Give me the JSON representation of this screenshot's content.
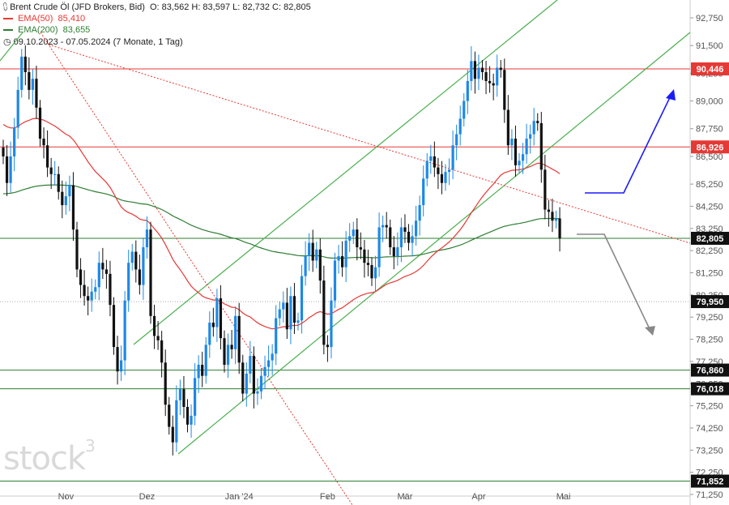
{
  "header": {
    "title": "Brent Crude Öl (JFD Brokers, Bid)",
    "ohlc": "O: 83,562   H: 83,597   L: 82,732   C: 82,805",
    "ema50_label": "EMA(50)",
    "ema50_value": "85,410",
    "ema200_label": "EMA(200)",
    "ema200_value": "83,655",
    "range": "09.10.2023 - 07.05.2024  (7 Monate, 1 Tag)"
  },
  "logo": {
    "text": "stock",
    "sup": "3"
  },
  "colors": {
    "up": "#1e88e5",
    "down": "#111111",
    "ema50": "#e53935",
    "ema200": "#2e7d32",
    "red_line": "#e53935",
    "green_line": "#2e7d32",
    "channel": "#4caf50",
    "arrow_up": "#1a1aff",
    "arrow_down": "#888888"
  },
  "chart_data": {
    "type": "candlestick",
    "ylim": [
      71.25,
      92.75
    ],
    "yticks": [
      "92,750",
      "91,500",
      "90,250",
      "89,000",
      "87,750",
      "86,500",
      "85,250",
      "84,250",
      "83,250",
      "82,250",
      "81,250",
      "80,250",
      "79,250",
      "78,250",
      "77,250",
      "76,250",
      "75,250",
      "74,250",
      "73,250",
      "72,250",
      "71,250"
    ],
    "ytick_values": [
      92.75,
      91.5,
      90.25,
      89.0,
      87.75,
      86.5,
      85.25,
      84.25,
      83.25,
      82.25,
      81.25,
      80.25,
      79.25,
      78.25,
      77.25,
      76.25,
      75.25,
      74.25,
      73.25,
      72.25,
      71.25
    ],
    "xticks": [
      {
        "label": "Nov",
        "index": 17
      },
      {
        "label": "Dez",
        "index": 39
      },
      {
        "label": "Jan '24",
        "index": 64
      },
      {
        "label": "Feb",
        "index": 88
      },
      {
        "label": "Mär",
        "index": 109
      },
      {
        "label": "Apr",
        "index": 129
      },
      {
        "label": "Mai",
        "index": 152
      }
    ],
    "levels": [
      {
        "value": 90.446,
        "label": "90,446",
        "color": "#e53935",
        "kind": "red"
      },
      {
        "value": 86.926,
        "label": "86,926",
        "color": "#e53935",
        "kind": "red"
      },
      {
        "value": 82.805,
        "label": "82,805",
        "color": "#111111",
        "kind": "price"
      },
      {
        "value": 79.95,
        "label": "79,950",
        "color": "#111111",
        "kind": "dotted"
      },
      {
        "value": 76.86,
        "label": "76,860",
        "color": "#111111",
        "kind": "green"
      },
      {
        "value": 76.018,
        "label": "76,018",
        "color": "#111111",
        "kind": "green"
      },
      {
        "value": 71.852,
        "label": "71,852",
        "color": "#111111",
        "kind": "green"
      }
    ],
    "closes": [
      86.5,
      85.3,
      86.5,
      87.8,
      89.5,
      91.0,
      90.3,
      89.5,
      90.0,
      88.7,
      87.3,
      87.0,
      86.0,
      85.7,
      85.7,
      84.9,
      84.3,
      84.7,
      85.2,
      83.2,
      81.4,
      80.7,
      80.2,
      80.0,
      80.4,
      80.6,
      81.7,
      81.4,
      81.2,
      79.8,
      77.9,
      76.8,
      77.3,
      80.0,
      81.7,
      82.2,
      81.4,
      80.7,
      82.4,
      83.2,
      79.3,
      78.4,
      78.2,
      77.2,
      75.3,
      74.3,
      73.6,
      75.5,
      76.0,
      75.2,
      74.4,
      74.8,
      76.5,
      77.1,
      76.6,
      78.0,
      79.0,
      78.8,
      80.1,
      78.3,
      77.1,
      78.0,
      77.8,
      79.3,
      77.2,
      75.8,
      76.7,
      77.5,
      75.8,
      75.9,
      76.6,
      77.0,
      77.3,
      77.6,
      79.2,
      79.6,
      79.9,
      78.7,
      80.2,
      79.0,
      79.1,
      81.1,
      82.0,
      82.6,
      81.8,
      82.3,
      80.9,
      78.0,
      77.9,
      80.0,
      81.8,
      82.0,
      81.5,
      82.7,
      82.9,
      83.2,
      82.4,
      82.3,
      81.7,
      81.6,
      81.0,
      81.5,
      83.3,
      83.4,
      83.3,
      82.4,
      82.0,
      82.4,
      83.3,
      83.1,
      82.6,
      82.9,
      83.6,
      84.3,
      85.5,
      86.3,
      86.5,
      86.0,
      85.7,
      85.3,
      85.8,
      85.9,
      87.0,
      87.5,
      88.2,
      89.0,
      89.9,
      90.8,
      90.0,
      90.5,
      90.3,
      89.9,
      89.8,
      89.7,
      90.5,
      90.4,
      88.6,
      87.0,
      87.3,
      86.1,
      86.3,
      86.6,
      87.3,
      87.5,
      88.1,
      88.0,
      85.9,
      84.1,
      84.0,
      83.6,
      83.7,
      82.8
    ]
  }
}
